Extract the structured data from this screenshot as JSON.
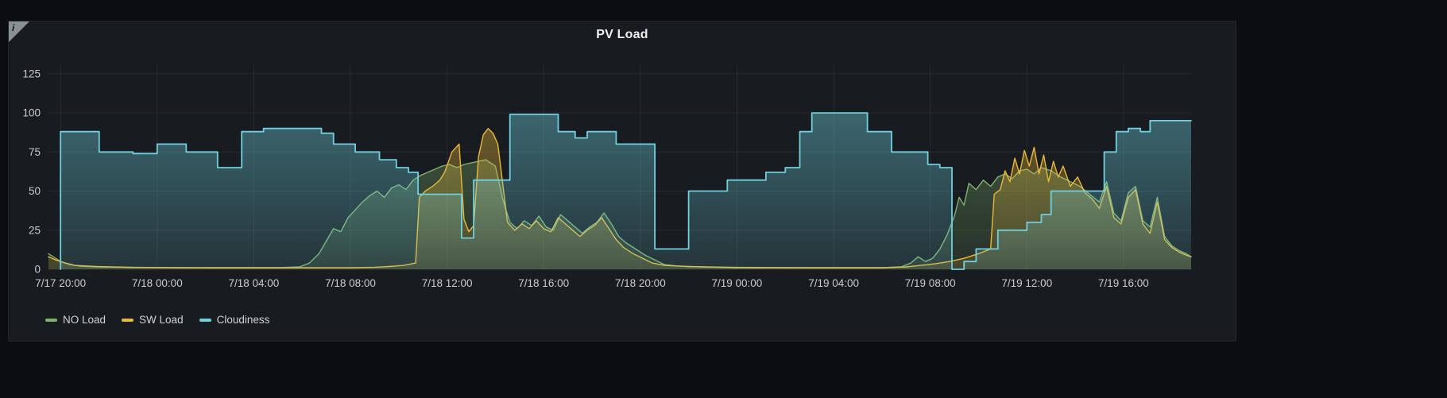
{
  "panel": {
    "title": "PV Load",
    "info_icon": "i"
  },
  "colors": {
    "page_background": "#0c0d10",
    "panel_background": "#181b1f",
    "panel_border": "#23262c",
    "grid": "rgba(255,255,255,0.07)",
    "axis_text": "#c9cbce",
    "title_text": "#edeeef",
    "no_load": "#7EB26D",
    "sw_load": "#EAB839",
    "cloudiness": "#6ED0E0"
  },
  "chart_data": {
    "type": "area",
    "title": "PV Load",
    "x_axis": {
      "unit": "time",
      "hours_since": "7/17 00:00",
      "domain_hours": [
        19.5,
        66.8
      ],
      "tick_hours": [
        20,
        24,
        28,
        32,
        36,
        40,
        44,
        48,
        52,
        56,
        60,
        64
      ],
      "tick_labels": [
        "7/17 20:00",
        "7/18 00:00",
        "7/18 04:00",
        "7/18 08:00",
        "7/18 12:00",
        "7/18 16:00",
        "7/18 20:00",
        "7/19 00:00",
        "7/19 04:00",
        "7/19 08:00",
        "7/19 12:00",
        "7/19 16:00"
      ]
    },
    "y_axis": {
      "ticks": [
        0,
        25,
        50,
        75,
        100,
        125
      ],
      "max": 131
    },
    "legend": {
      "position": "bottom-left",
      "items": [
        {
          "label": "NO Load",
          "color": "#7EB26D"
        },
        {
          "label": "SW Load",
          "color": "#EAB839"
        },
        {
          "label": "Cloudiness",
          "color": "#6ED0E0"
        }
      ]
    },
    "series": [
      {
        "name": "NO Load",
        "color": "#7EB26D",
        "type": "line-area",
        "points": [
          [
            19.5,
            10
          ],
          [
            19.7,
            8
          ],
          [
            20.0,
            5
          ],
          [
            20.4,
            3
          ],
          [
            20.8,
            2
          ],
          [
            21.6,
            1.5
          ],
          [
            23,
            1.2
          ],
          [
            25,
            1
          ],
          [
            27,
            1
          ],
          [
            29,
            1
          ],
          [
            29.9,
            1.5
          ],
          [
            30.3,
            4
          ],
          [
            30.7,
            10
          ],
          [
            31.0,
            18
          ],
          [
            31.3,
            26
          ],
          [
            31.6,
            24
          ],
          [
            31.9,
            33
          ],
          [
            32.2,
            38
          ],
          [
            32.5,
            43
          ],
          [
            32.8,
            47
          ],
          [
            33.1,
            50
          ],
          [
            33.4,
            46
          ],
          [
            33.7,
            52
          ],
          [
            34.0,
            54
          ],
          [
            34.3,
            51
          ],
          [
            34.6,
            57
          ],
          [
            34.9,
            60
          ],
          [
            35.2,
            62
          ],
          [
            35.5,
            64
          ],
          [
            35.8,
            66
          ],
          [
            36.1,
            67
          ],
          [
            36.4,
            65
          ],
          [
            36.7,
            67
          ],
          [
            37.0,
            68
          ],
          [
            37.3,
            69
          ],
          [
            37.6,
            70
          ],
          [
            38.0,
            66
          ],
          [
            38.3,
            45
          ],
          [
            38.6,
            30
          ],
          [
            38.9,
            26
          ],
          [
            39.2,
            31
          ],
          [
            39.5,
            28
          ],
          [
            39.8,
            34
          ],
          [
            40.1,
            27
          ],
          [
            40.4,
            25
          ],
          [
            40.7,
            35
          ],
          [
            41.0,
            31
          ],
          [
            41.3,
            27
          ],
          [
            41.6,
            23
          ],
          [
            41.9,
            27
          ],
          [
            42.2,
            30
          ],
          [
            42.5,
            36
          ],
          [
            42.8,
            29
          ],
          [
            43.1,
            21
          ],
          [
            43.4,
            17
          ],
          [
            43.8,
            13
          ],
          [
            44.2,
            9
          ],
          [
            44.6,
            6
          ],
          [
            45.0,
            3
          ],
          [
            45.6,
            2
          ],
          [
            46.5,
            1.5
          ],
          [
            48,
            1
          ],
          [
            50,
            1
          ],
          [
            52,
            1
          ],
          [
            54,
            1
          ],
          [
            54.8,
            1.5
          ],
          [
            55.2,
            4
          ],
          [
            55.5,
            8
          ],
          [
            55.8,
            5
          ],
          [
            56.1,
            7
          ],
          [
            56.4,
            13
          ],
          [
            56.7,
            22
          ],
          [
            57.0,
            34
          ],
          [
            57.2,
            46
          ],
          [
            57.4,
            41
          ],
          [
            57.6,
            55
          ],
          [
            57.9,
            51
          ],
          [
            58.2,
            57
          ],
          [
            58.5,
            53
          ],
          [
            58.8,
            59
          ],
          [
            59.1,
            61
          ],
          [
            59.4,
            58
          ],
          [
            59.7,
            63
          ],
          [
            60.0,
            64
          ],
          [
            60.3,
            61
          ],
          [
            60.6,
            65
          ],
          [
            61.0,
            63
          ],
          [
            61.4,
            59
          ],
          [
            61.8,
            56
          ],
          [
            62.2,
            53
          ],
          [
            62.6,
            48
          ],
          [
            63.0,
            43
          ],
          [
            63.3,
            56
          ],
          [
            63.6,
            36
          ],
          [
            63.9,
            31
          ],
          [
            64.2,
            49
          ],
          [
            64.5,
            53
          ],
          [
            64.8,
            31
          ],
          [
            65.1,
            27
          ],
          [
            65.4,
            46
          ],
          [
            65.7,
            21
          ],
          [
            66.0,
            15
          ],
          [
            66.3,
            12
          ],
          [
            66.6,
            10
          ],
          [
            66.8,
            8
          ]
        ]
      },
      {
        "name": "SW Load",
        "color": "#EAB839",
        "type": "line-area",
        "points": [
          [
            19.5,
            8
          ],
          [
            19.8,
            6
          ],
          [
            20.2,
            4
          ],
          [
            20.6,
            2.5
          ],
          [
            21.5,
            1.8
          ],
          [
            23,
            1.2
          ],
          [
            26,
            1
          ],
          [
            29,
            1
          ],
          [
            32,
            1
          ],
          [
            33.0,
            1.3
          ],
          [
            33.6,
            1.8
          ],
          [
            34.2,
            2.5
          ],
          [
            34.7,
            4
          ],
          [
            34.85,
            46
          ],
          [
            35.1,
            50
          ],
          [
            35.4,
            53
          ],
          [
            35.7,
            57
          ],
          [
            35.9,
            62
          ],
          [
            36.2,
            75
          ],
          [
            36.5,
            80
          ],
          [
            36.7,
            32
          ],
          [
            36.9,
            24
          ],
          [
            37.1,
            28
          ],
          [
            37.3,
            72
          ],
          [
            37.5,
            86
          ],
          [
            37.7,
            90
          ],
          [
            37.9,
            87
          ],
          [
            38.1,
            80
          ],
          [
            38.3,
            55
          ],
          [
            38.5,
            30
          ],
          [
            38.8,
            25
          ],
          [
            39.1,
            29
          ],
          [
            39.4,
            26
          ],
          [
            39.7,
            31
          ],
          [
            40.0,
            26
          ],
          [
            40.3,
            24
          ],
          [
            40.6,
            33
          ],
          [
            40.9,
            29
          ],
          [
            41.2,
            25
          ],
          [
            41.5,
            21
          ],
          [
            41.8,
            25
          ],
          [
            42.1,
            28
          ],
          [
            42.4,
            33
          ],
          [
            42.7,
            26
          ],
          [
            43.0,
            19
          ],
          [
            43.3,
            14
          ],
          [
            43.7,
            10
          ],
          [
            44.1,
            7
          ],
          [
            44.5,
            4
          ],
          [
            45.0,
            2.5
          ],
          [
            46,
            1.8
          ],
          [
            48,
            1.2
          ],
          [
            51,
            1
          ],
          [
            54,
            1
          ],
          [
            55.0,
            1.5
          ],
          [
            55.6,
            2.5
          ],
          [
            56.2,
            3.5
          ],
          [
            56.8,
            5
          ],
          [
            57.4,
            7
          ],
          [
            58.0,
            10
          ],
          [
            58.5,
            13
          ],
          [
            58.65,
            48
          ],
          [
            58.9,
            51
          ],
          [
            59.1,
            63
          ],
          [
            59.3,
            56
          ],
          [
            59.5,
            71
          ],
          [
            59.7,
            61
          ],
          [
            59.9,
            76
          ],
          [
            60.1,
            66
          ],
          [
            60.3,
            78
          ],
          [
            60.5,
            61
          ],
          [
            60.7,
            73
          ],
          [
            60.9,
            56
          ],
          [
            61.1,
            69
          ],
          [
            61.3,
            59
          ],
          [
            61.5,
            66
          ],
          [
            61.8,
            53
          ],
          [
            62.1,
            59
          ],
          [
            62.4,
            49
          ],
          [
            62.7,
            45
          ],
          [
            63.0,
            39
          ],
          [
            63.3,
            53
          ],
          [
            63.6,
            33
          ],
          [
            63.9,
            29
          ],
          [
            64.2,
            46
          ],
          [
            64.5,
            51
          ],
          [
            64.8,
            29
          ],
          [
            65.1,
            23
          ],
          [
            65.4,
            43
          ],
          [
            65.7,
            19
          ],
          [
            66.0,
            14
          ],
          [
            66.3,
            11
          ],
          [
            66.6,
            9
          ],
          [
            66.8,
            8
          ]
        ]
      },
      {
        "name": "Cloudiness",
        "color": "#6ED0E0",
        "type": "step-area",
        "end_hour": 66.8,
        "points": [
          [
            20.0,
            0
          ],
          [
            20.0,
            88
          ],
          [
            21.6,
            75
          ],
          [
            23.0,
            74
          ],
          [
            24.0,
            80
          ],
          [
            25.2,
            75
          ],
          [
            26.5,
            65
          ],
          [
            27.5,
            88
          ],
          [
            28.4,
            90
          ],
          [
            30.8,
            87
          ],
          [
            31.3,
            80
          ],
          [
            32.2,
            75
          ],
          [
            33.2,
            70
          ],
          [
            33.9,
            65
          ],
          [
            34.4,
            62
          ],
          [
            34.8,
            48
          ],
          [
            36.6,
            20
          ],
          [
            37.1,
            57
          ],
          [
            38.6,
            99
          ],
          [
            40.6,
            88
          ],
          [
            41.3,
            84
          ],
          [
            41.8,
            88
          ],
          [
            43.0,
            80
          ],
          [
            44.6,
            13
          ],
          [
            46.0,
            50
          ],
          [
            47.6,
            57
          ],
          [
            49.2,
            62
          ],
          [
            50.0,
            65
          ],
          [
            50.6,
            88
          ],
          [
            51.1,
            100
          ],
          [
            53.4,
            88
          ],
          [
            54.4,
            75
          ],
          [
            55.9,
            67
          ],
          [
            56.4,
            65
          ],
          [
            56.9,
            0
          ],
          [
            57.4,
            5
          ],
          [
            57.9,
            13
          ],
          [
            58.8,
            25
          ],
          [
            60.0,
            30
          ],
          [
            60.6,
            35
          ],
          [
            61.0,
            50
          ],
          [
            63.2,
            75
          ],
          [
            63.7,
            88
          ],
          [
            64.2,
            90
          ],
          [
            64.7,
            88
          ],
          [
            65.1,
            95
          ]
        ]
      }
    ]
  }
}
